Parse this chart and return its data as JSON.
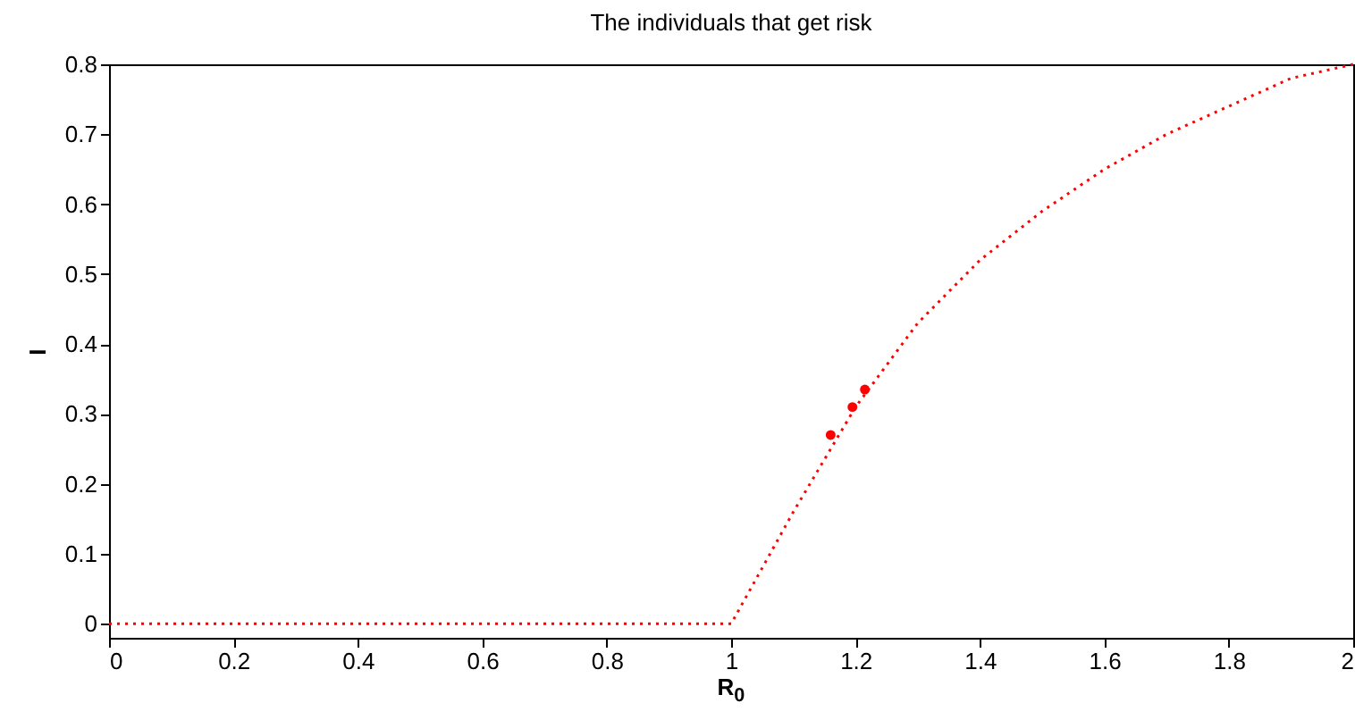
{
  "chart_data": {
    "type": "line",
    "title": "The individuals that get risk",
    "xlabel": "R$_{0}$",
    "ylabel": "I",
    "xlim": [
      0,
      2
    ],
    "xticks": [
      {
        "value": 0,
        "label": "0"
      },
      0.2,
      0.4,
      0.6,
      0.8,
      {
        "value": 1,
        "label": "1"
      },
      1.2,
      1.4,
      1.6,
      1.8,
      {
        "value": 2,
        "label": "2"
      }
    ],
    "ylim": [
      -0.02,
      0.8
    ],
    "yticks": [
      {
        "value": 0,
        "label": "0"
      },
      0.1,
      0.2,
      0.3,
      0.4,
      0.5,
      0.6,
      0.7,
      0.8
    ],
    "grid": false,
    "legend": false,
    "line_style": "dotted",
    "marker": "none",
    "series": [
      {
        "color": "#ff0000",
        "x": [
          0,
          0.5,
          1,
          1.1,
          1.2,
          1.3,
          1.4,
          1.5,
          1.6,
          1.7,
          1.8,
          1.9,
          2
        ],
        "values": [
          0,
          0,
          0,
          0.16,
          0.31,
          0.43,
          0.52,
          0.59,
          0.65,
          0.7,
          0.74,
          0.78,
          0.8
        ]
      },
      {
        "type": "scatter",
        "marker": "circle",
        "color": "#ff0000",
        "x": [
          1.16,
          1.195,
          1.215
        ],
        "values": [
          0.27,
          0.31,
          0.335
        ]
      }
    ]
  }
}
